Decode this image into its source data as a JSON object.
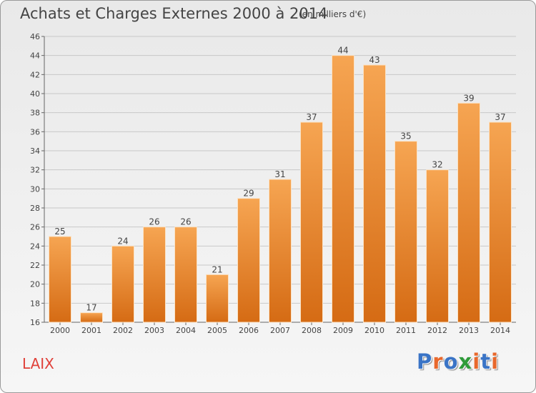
{
  "title": "Achats et Charges Externes 2000 à 2014",
  "subtitle": "(en milliers d'€)",
  "place_label": "LAIX",
  "logo": {
    "text": "Proxiti",
    "colors": [
      "#3a74c6",
      "#e8682c",
      "#3a74c6",
      "#2f9b3a",
      "#e8682c",
      "#3a74c6",
      "#e8682c"
    ]
  },
  "colors": {
    "bar_light": "#f6a552",
    "bar_dark": "#d56b14",
    "grid": "#c8c8c8",
    "text": "#444444"
  },
  "chart_data": {
    "type": "bar",
    "categories": [
      "2000",
      "2001",
      "2002",
      "2003",
      "2004",
      "2005",
      "2006",
      "2007",
      "2008",
      "2009",
      "2010",
      "2011",
      "2012",
      "2013",
      "2014"
    ],
    "values": [
      25,
      17,
      24,
      26,
      26,
      21,
      29,
      31,
      37,
      44,
      43,
      35,
      32,
      39,
      37
    ],
    "ylim": [
      16,
      46
    ],
    "yticks": [
      16,
      18,
      20,
      22,
      24,
      26,
      28,
      30,
      32,
      34,
      36,
      38,
      40,
      42,
      44,
      46
    ],
    "grid": true,
    "title": "Achats et Charges Externes 2000 à 2014",
    "xlabel": "",
    "ylabel": ""
  }
}
